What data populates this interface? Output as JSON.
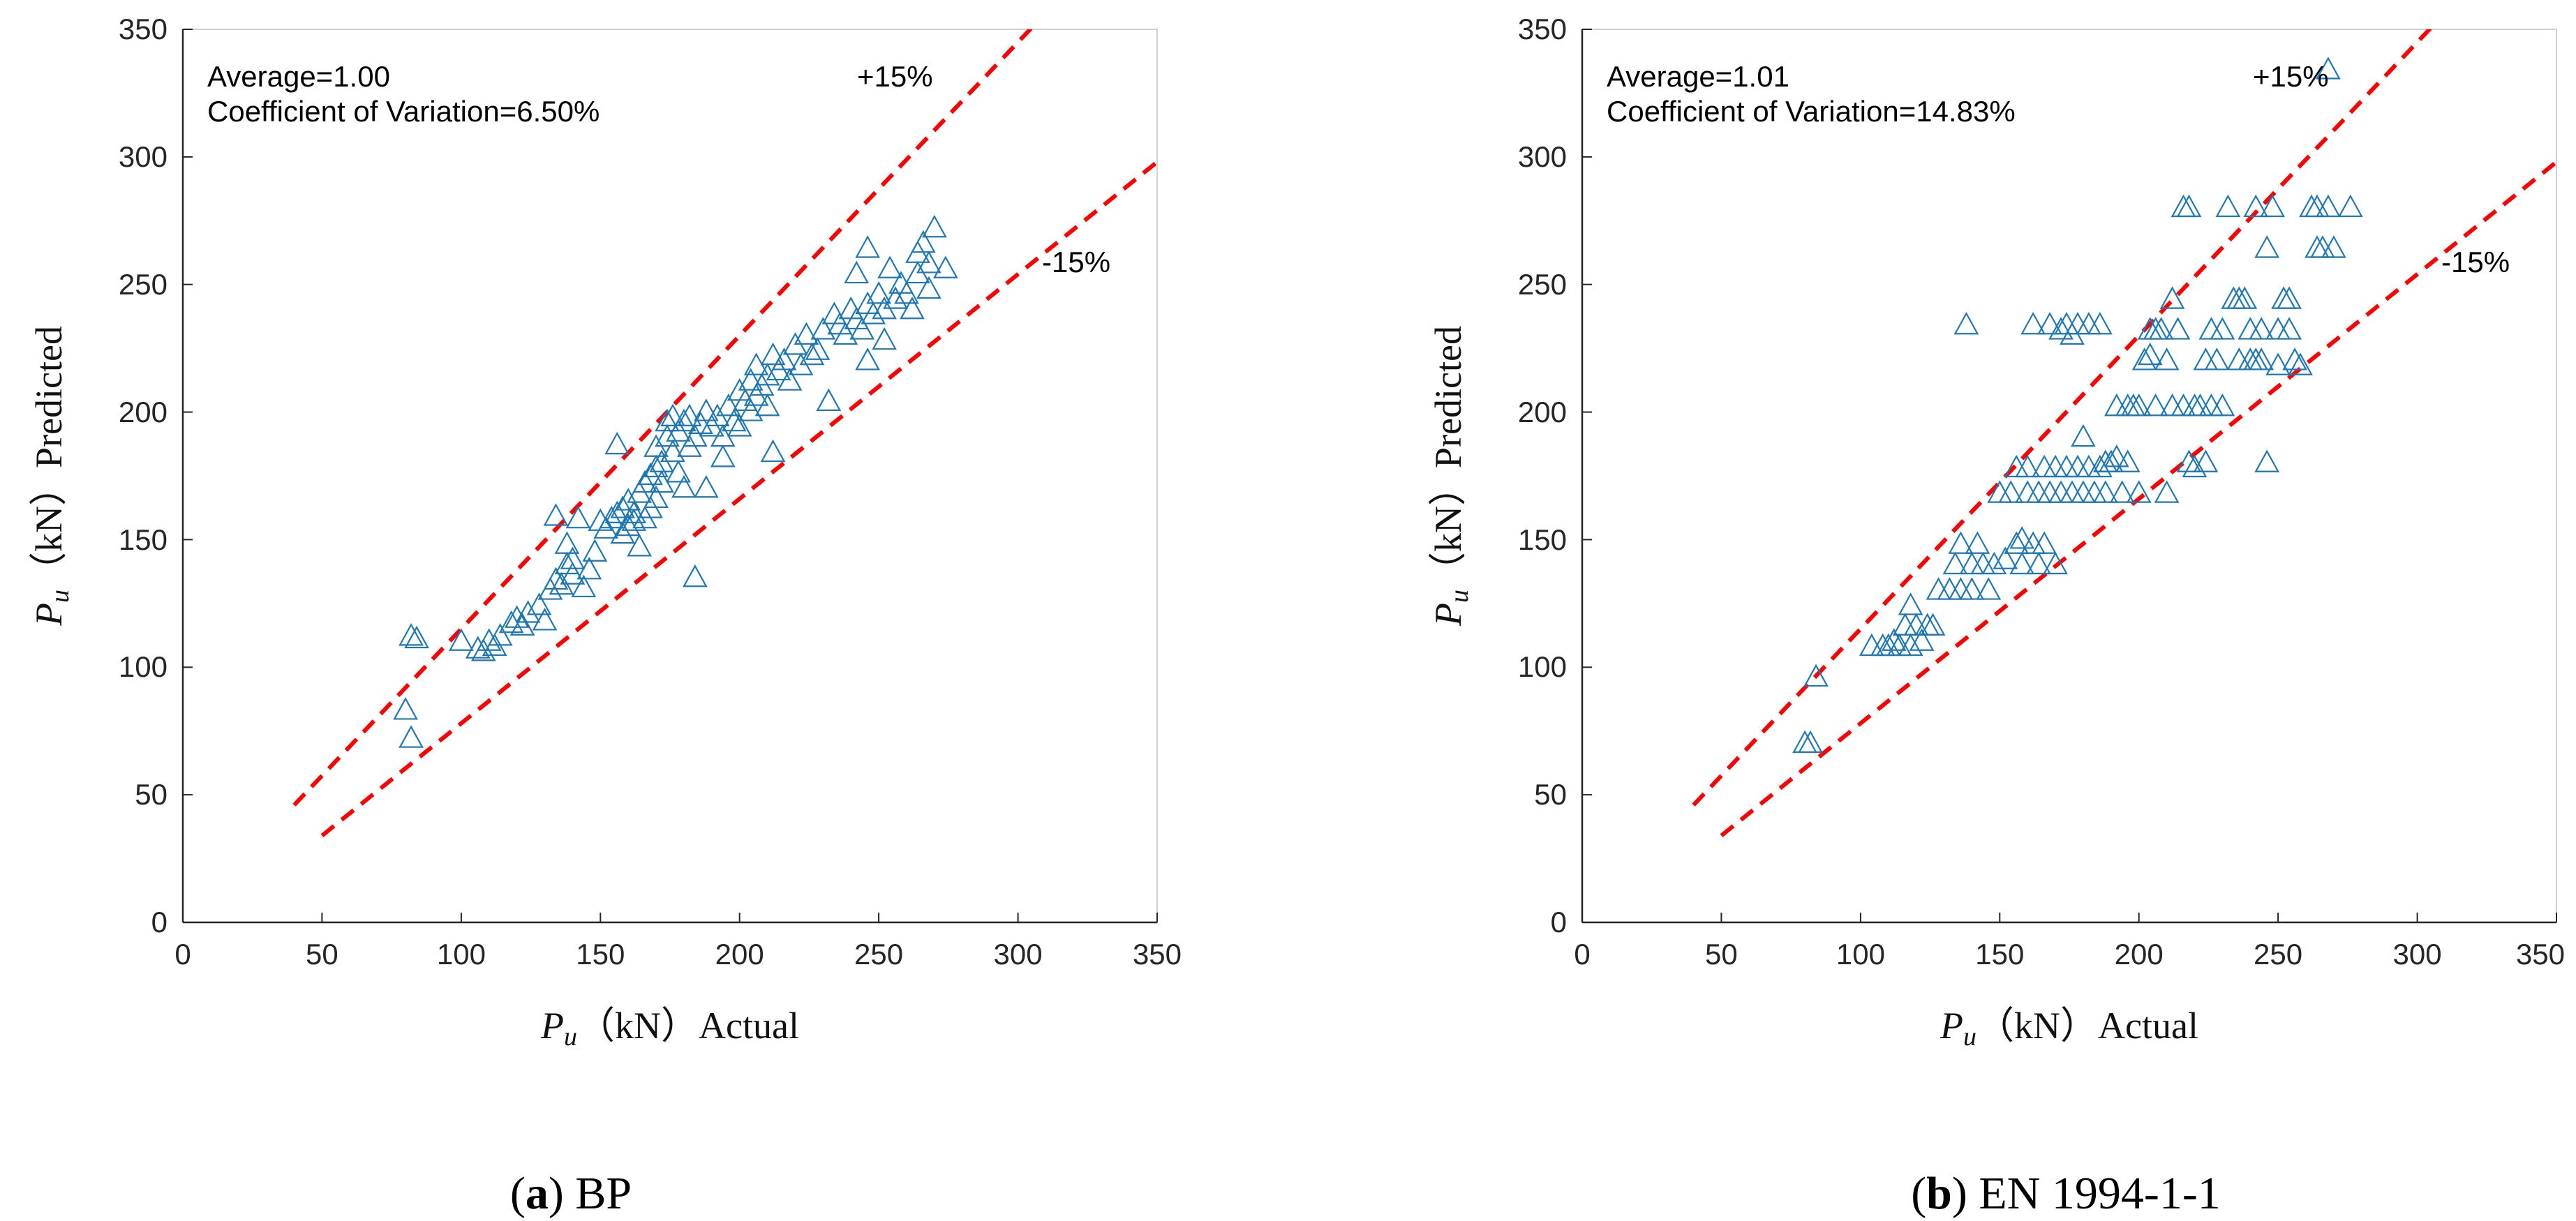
{
  "chart_data": [
    {
      "type": "scatter",
      "panel_letter": "a",
      "caption": "BP",
      "xlabel_var": "P",
      "xlabel_sub": "u",
      "xlabel_text": "（kN）Actual",
      "ylabel_var": "P",
      "ylabel_sub": "u",
      "ylabel_text": "（kN）Predicted",
      "xlim": [
        0,
        350
      ],
      "ylim": [
        0,
        350
      ],
      "xticks": [
        "0",
        "50",
        "100",
        "150",
        "200",
        "250",
        "300",
        "350"
      ],
      "yticks": [
        "0",
        "50",
        "100",
        "150",
        "200",
        "250",
        "300",
        "350"
      ],
      "annotation_average": "Average=1.00",
      "annotation_cov": "Coefficient of Variation=6.50%",
      "upper_label": "+15%",
      "lower_label": "-15%",
      "marker_color": "#1f77b4",
      "line_color": "#ff0000",
      "upper_line": {
        "x": [
          40,
          307
        ],
        "y": [
          46,
          353
        ]
      },
      "lower_line": {
        "x": [
          50,
          350
        ],
        "y": [
          34,
          298
        ]
      },
      "points": [
        [
          80,
          83
        ],
        [
          82,
          72
        ],
        [
          82,
          112
        ],
        [
          84,
          111
        ],
        [
          100,
          110
        ],
        [
          106,
          107
        ],
        [
          108,
          106
        ],
        [
          110,
          110
        ],
        [
          112,
          108
        ],
        [
          114,
          112
        ],
        [
          118,
          117
        ],
        [
          120,
          119
        ],
        [
          122,
          116
        ],
        [
          124,
          121
        ],
        [
          128,
          124
        ],
        [
          130,
          118
        ],
        [
          132,
          130
        ],
        [
          134,
          134
        ],
        [
          134,
          159
        ],
        [
          136,
          132
        ],
        [
          138,
          140
        ],
        [
          138,
          148
        ],
        [
          140,
          142
        ],
        [
          140,
          136
        ],
        [
          142,
          158
        ],
        [
          144,
          131
        ],
        [
          146,
          138
        ],
        [
          148,
          145
        ],
        [
          150,
          157
        ],
        [
          152,
          154
        ],
        [
          154,
          158
        ],
        [
          156,
          160
        ],
        [
          156,
          187
        ],
        [
          158,
          152
        ],
        [
          158,
          162
        ],
        [
          160,
          155
        ],
        [
          160,
          165
        ],
        [
          162,
          157
        ],
        [
          162,
          160
        ],
        [
          164,
          168
        ],
        [
          164,
          147
        ],
        [
          166,
          172
        ],
        [
          166,
          158
        ],
        [
          168,
          175
        ],
        [
          168,
          162
        ],
        [
          170,
          178
        ],
        [
          170,
          186
        ],
        [
          170,
          166
        ],
        [
          172,
          180
        ],
        [
          172,
          172
        ],
        [
          174,
          196
        ],
        [
          174,
          190
        ],
        [
          176,
          184
        ],
        [
          176,
          198
        ],
        [
          178,
          176
        ],
        [
          178,
          192
        ],
        [
          180,
          170
        ],
        [
          180,
          196
        ],
        [
          182,
          186
        ],
        [
          182,
          198
        ],
        [
          184,
          190
        ],
        [
          184,
          135
        ],
        [
          186,
          195
        ],
        [
          188,
          170
        ],
        [
          188,
          200
        ],
        [
          190,
          194
        ],
        [
          192,
          198
        ],
        [
          194,
          190
        ],
        [
          194,
          182
        ],
        [
          196,
          202
        ],
        [
          198,
          196
        ],
        [
          200,
          208
        ],
        [
          200,
          194
        ],
        [
          202,
          204
        ],
        [
          204,
          212
        ],
        [
          204,
          200
        ],
        [
          206,
          218
        ],
        [
          206,
          206
        ],
        [
          208,
          210
        ],
        [
          210,
          214
        ],
        [
          210,
          202
        ],
        [
          212,
          222
        ],
        [
          212,
          184
        ],
        [
          214,
          216
        ],
        [
          216,
          220
        ],
        [
          218,
          212
        ],
        [
          220,
          226
        ],
        [
          222,
          218
        ],
        [
          224,
          230
        ],
        [
          226,
          222
        ],
        [
          228,
          224
        ],
        [
          230,
          232
        ],
        [
          232,
          204
        ],
        [
          234,
          238
        ],
        [
          236,
          234
        ],
        [
          238,
          230
        ],
        [
          240,
          240
        ],
        [
          242,
          236
        ],
        [
          242,
          254
        ],
        [
          244,
          232
        ],
        [
          246,
          242
        ],
        [
          246,
          264
        ],
        [
          246,
          220
        ],
        [
          248,
          238
        ],
        [
          250,
          246
        ],
        [
          252,
          228
        ],
        [
          252,
          240
        ],
        [
          254,
          256
        ],
        [
          256,
          244
        ],
        [
          258,
          250
        ],
        [
          260,
          246
        ],
        [
          262,
          240
        ],
        [
          264,
          262
        ],
        [
          264,
          254
        ],
        [
          266,
          266
        ],
        [
          268,
          258
        ],
        [
          268,
          248
        ],
        [
          270,
          272
        ],
        [
          274,
          256
        ]
      ]
    },
    {
      "type": "scatter",
      "panel_letter": "b",
      "caption": "EN 1994-1-1",
      "xlabel_var": "P",
      "xlabel_sub": "u",
      "xlabel_text": "（kN）Actual",
      "ylabel_var": "P",
      "ylabel_sub": "u",
      "ylabel_text": "（kN）Predicted",
      "xlim": [
        0,
        350
      ],
      "ylim": [
        0,
        350
      ],
      "xticks": [
        "0",
        "50",
        "100",
        "150",
        "200",
        "250",
        "300",
        "350"
      ],
      "yticks": [
        "0",
        "50",
        "100",
        "150",
        "200",
        "250",
        "300",
        "350"
      ],
      "annotation_average": "Average=1.01",
      "annotation_cov": "Coefficient of Variation=14.83%",
      "upper_label": "+15%",
      "lower_label": "-15%",
      "marker_color": "#1f77b4",
      "line_color": "#ff0000",
      "upper_line": {
        "x": [
          40,
          307
        ],
        "y": [
          46,
          353
        ]
      },
      "lower_line": {
        "x": [
          50,
          350
        ],
        "y": [
          34,
          298
        ]
      },
      "points": [
        [
          80,
          70
        ],
        [
          82,
          70
        ],
        [
          84,
          96
        ],
        [
          104,
          108
        ],
        [
          108,
          108
        ],
        [
          110,
          108
        ],
        [
          112,
          110
        ],
        [
          114,
          108
        ],
        [
          116,
          116
        ],
        [
          118,
          108
        ],
        [
          118,
          124
        ],
        [
          120,
          116
        ],
        [
          122,
          110
        ],
        [
          124,
          116
        ],
        [
          126,
          116
        ],
        [
          128,
          130
        ],
        [
          132,
          130
        ],
        [
          134,
          140
        ],
        [
          136,
          130
        ],
        [
          136,
          148
        ],
        [
          138,
          234
        ],
        [
          140,
          130
        ],
        [
          140,
          140
        ],
        [
          142,
          148
        ],
        [
          144,
          140
        ],
        [
          146,
          130
        ],
        [
          148,
          140
        ],
        [
          150,
          168
        ],
        [
          152,
          142
        ],
        [
          154,
          168
        ],
        [
          156,
          148
        ],
        [
          156,
          178
        ],
        [
          158,
          140
        ],
        [
          158,
          150
        ],
        [
          160,
          178
        ],
        [
          160,
          168
        ],
        [
          162,
          148
        ],
        [
          162,
          234
        ],
        [
          164,
          140
        ],
        [
          164,
          168
        ],
        [
          166,
          178
        ],
        [
          166,
          148
        ],
        [
          168,
          234
        ],
        [
          168,
          168
        ],
        [
          170,
          178
        ],
        [
          170,
          140
        ],
        [
          172,
          168
        ],
        [
          172,
          232
        ],
        [
          174,
          178
        ],
        [
          174,
          234
        ],
        [
          176,
          168
        ],
        [
          176,
          230
        ],
        [
          178,
          178
        ],
        [
          178,
          234
        ],
        [
          180,
          190
        ],
        [
          180,
          168
        ],
        [
          182,
          178
        ],
        [
          182,
          234
        ],
        [
          184,
          168
        ],
        [
          186,
          178
        ],
        [
          186,
          234
        ],
        [
          188,
          180
        ],
        [
          188,
          168
        ],
        [
          190,
          180
        ],
        [
          192,
          202
        ],
        [
          192,
          182
        ],
        [
          194,
          168
        ],
        [
          196,
          202
        ],
        [
          196,
          180
        ],
        [
          198,
          202
        ],
        [
          200,
          202
        ],
        [
          200,
          168
        ],
        [
          202,
          220
        ],
        [
          204,
          222
        ],
        [
          204,
          232
        ],
        [
          206,
          202
        ],
        [
          206,
          232
        ],
        [
          208,
          232
        ],
        [
          210,
          168
        ],
        [
          210,
          220
        ],
        [
          212,
          244
        ],
        [
          212,
          202
        ],
        [
          214,
          232
        ],
        [
          216,
          202
        ],
        [
          216,
          280
        ],
        [
          218,
          280
        ],
        [
          218,
          180
        ],
        [
          220,
          202
        ],
        [
          220,
          178
        ],
        [
          222,
          202
        ],
        [
          224,
          180
        ],
        [
          224,
          220
        ],
        [
          226,
          202
        ],
        [
          226,
          232
        ],
        [
          228,
          220
        ],
        [
          230,
          232
        ],
        [
          230,
          202
        ],
        [
          232,
          280
        ],
        [
          234,
          244
        ],
        [
          236,
          244
        ],
        [
          236,
          220
        ],
        [
          238,
          244
        ],
        [
          240,
          232
        ],
        [
          240,
          220
        ],
        [
          242,
          220
        ],
        [
          242,
          280
        ],
        [
          244,
          232
        ],
        [
          244,
          220
        ],
        [
          246,
          264
        ],
        [
          246,
          180
        ],
        [
          248,
          280
        ],
        [
          250,
          232
        ],
        [
          250,
          218
        ],
        [
          252,
          244
        ],
        [
          254,
          244
        ],
        [
          254,
          232
        ],
        [
          256,
          220
        ],
        [
          258,
          218
        ],
        [
          262,
          280
        ],
        [
          264,
          280
        ],
        [
          264,
          264
        ],
        [
          266,
          264
        ],
        [
          268,
          280
        ],
        [
          268,
          334
        ],
        [
          270,
          264
        ],
        [
          276,
          280
        ]
      ]
    }
  ]
}
